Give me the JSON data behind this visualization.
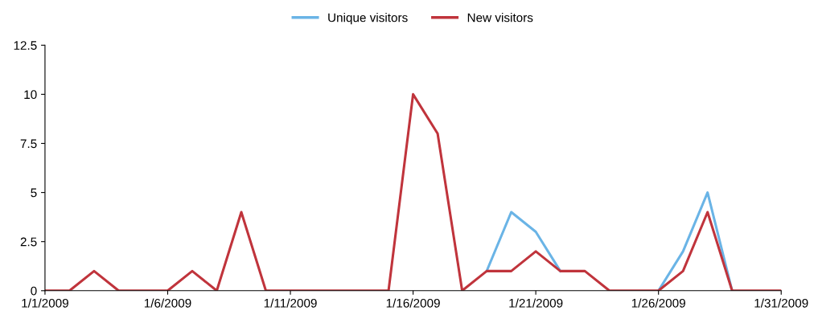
{
  "chart_data": {
    "type": "line",
    "x": [
      "2009-01-01",
      "2009-01-02",
      "2009-01-03",
      "2009-01-04",
      "2009-01-05",
      "2009-01-06",
      "2009-01-07",
      "2009-01-08",
      "2009-01-09",
      "2009-01-10",
      "2009-01-11",
      "2009-01-12",
      "2009-01-13",
      "2009-01-14",
      "2009-01-15",
      "2009-01-16",
      "2009-01-17",
      "2009-01-18",
      "2009-01-19",
      "2009-01-20",
      "2009-01-21",
      "2009-01-22",
      "2009-01-23",
      "2009-01-24",
      "2009-01-25",
      "2009-01-26",
      "2009-01-27",
      "2009-01-28",
      "2009-01-29",
      "2009-01-30",
      "2009-01-31"
    ],
    "series": [
      {
        "name": "Unique visitors",
        "color": "#6ab4e6",
        "values": [
          null,
          null,
          null,
          null,
          null,
          null,
          null,
          null,
          null,
          null,
          null,
          null,
          null,
          null,
          null,
          null,
          null,
          null,
          1,
          4,
          3,
          1,
          null,
          null,
          null,
          0,
          2,
          5,
          0,
          null,
          null
        ]
      },
      {
        "name": "New visitors",
        "color": "#c0343c",
        "values": [
          0,
          0,
          1,
          0,
          0,
          0,
          1,
          0,
          4,
          0,
          0,
          0,
          0,
          0,
          0,
          10,
          8,
          0,
          1,
          1,
          2,
          1,
          1,
          0,
          0,
          0,
          1,
          4,
          0,
          0,
          0
        ]
      }
    ],
    "xlim": [
      "2009-01-01",
      "2009-01-31"
    ],
    "xticks": [
      {
        "value": "2009-01-01",
        "label": "1/1/2009"
      },
      {
        "value": "2009-01-06",
        "label": "1/6/2009"
      },
      {
        "value": "2009-01-11",
        "label": "1/11/2009"
      },
      {
        "value": "2009-01-16",
        "label": "1/16/2009"
      },
      {
        "value": "2009-01-21",
        "label": "1/21/2009"
      },
      {
        "value": "2009-01-26",
        "label": "1/26/2009"
      },
      {
        "value": "2009-01-31",
        "label": "1/31/2009"
      }
    ],
    "ylim": [
      0,
      12.5
    ],
    "yticks": [
      0,
      2.5,
      5,
      7.5,
      10,
      12.5
    ],
    "grid": false,
    "legend": "top",
    "marker": "none",
    "line_style": "solid"
  }
}
